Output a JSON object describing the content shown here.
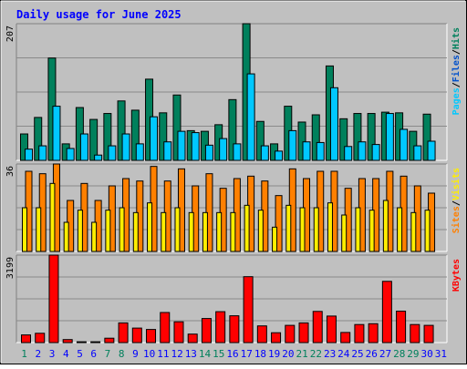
{
  "chart_data": {
    "type": "bar",
    "title": "Daily usage for June 2025",
    "categories": [
      "1",
      "2",
      "3",
      "4",
      "5",
      "6",
      "7",
      "8",
      "9",
      "10",
      "11",
      "12",
      "13",
      "14",
      "15",
      "16",
      "17",
      "18",
      "19",
      "20",
      "21",
      "22",
      "23",
      "24",
      "25",
      "26",
      "27",
      "28",
      "29",
      "30",
      "31"
    ],
    "weekend_days": [
      "1",
      "7",
      "8",
      "14",
      "15",
      "21",
      "22",
      "28",
      "29"
    ],
    "panels": [
      {
        "name": "pages-files-hits",
        "ymax": 207,
        "ymax_label": "207",
        "series": [
          {
            "name": "Hits",
            "color": "#00805c",
            "values": [
              40,
              65,
              155,
              25,
              80,
              62,
              71,
              90,
              76,
              123,
              72,
              99,
              45,
              44,
              54,
              92,
              207,
              59,
              25,
              82,
              58,
              69,
              143,
              63,
              71,
              71,
              73,
              72,
              44,
              70,
              0
            ]
          },
          {
            "name": "Files",
            "color": "#00c8ff",
            "values": [
              17,
              22,
              82,
              18,
              40,
              8,
              22,
              40,
              25,
              66,
              28,
              44,
              42,
              23,
              33,
              25,
              131,
              22,
              14,
              45,
              28,
              27,
              110,
              21,
              28,
              24,
              71,
              47,
              22,
              29,
              0
            ]
          },
          {
            "name": "Pages",
            "color": "#00c8ff",
            "values": [
              0,
              0,
              0,
              0,
              0,
              0,
              0,
              0,
              0,
              0,
              0,
              0,
              0,
              0,
              0,
              0,
              0,
              0,
              0,
              0,
              0,
              0,
              0,
              0,
              0,
              0,
              0,
              0,
              0,
              0,
              0
            ],
            "hidden": true
          }
        ],
        "axis_labels": [
          "Pages",
          "/",
          "Files",
          "/",
          "Hits"
        ],
        "axis_label_colors": [
          "#00c8ff",
          "#000000",
          "#0050cc",
          "#000000",
          "#00805c"
        ]
      },
      {
        "name": "sites-visits",
        "ymax": 36,
        "ymax_label": "36",
        "series": [
          {
            "name": "Visits",
            "color": "#ff8000",
            "values": [
              33,
              32,
              36,
              21,
              28,
              21,
              27,
              30,
              29,
              35,
              29,
              34,
              27,
              32,
              26,
              30,
              31,
              29,
              23,
              34,
              30,
              33,
              33,
              26,
              30,
              30,
              33,
              31,
              27,
              24,
              0
            ]
          },
          {
            "name": "Sites",
            "color": "#ffee00",
            "values": [
              18,
              18,
              28,
              12,
              17,
              12,
              17,
              18,
              16,
              20,
              16,
              18,
              16,
              16,
              16,
              16,
              19,
              17,
              10,
              19,
              18,
              18,
              20,
              15,
              18,
              17,
              21,
              18,
              16,
              17,
              0
            ]
          }
        ],
        "axis_labels": [
          "Sites",
          "/",
          "Visits"
        ],
        "axis_label_colors": [
          "#ff8000",
          "#000000",
          "#ffee00"
        ]
      },
      {
        "name": "kbytes",
        "ymax": 3199,
        "ymax_label": "3199",
        "series": [
          {
            "name": "KBytes",
            "color": "#ff0000",
            "values": [
              280,
              340,
              3199,
              110,
              30,
              30,
              160,
              720,
              530,
              480,
              1100,
              760,
              310,
              880,
              1130,
              980,
              2410,
              610,
              360,
              630,
              720,
              1140,
              970,
              370,
              660,
              690,
              2240,
              1150,
              660,
              630,
              0
            ]
          }
        ],
        "axis_labels": [
          "KBytes"
        ],
        "axis_label_colors": [
          "#ff0000"
        ]
      }
    ]
  },
  "colors": {
    "background": "#c0c0c0",
    "plot_background": "#c0c0c0",
    "title": "#0000ff",
    "weekday_label": "#0000ff",
    "weekend_label": "#00805c"
  }
}
